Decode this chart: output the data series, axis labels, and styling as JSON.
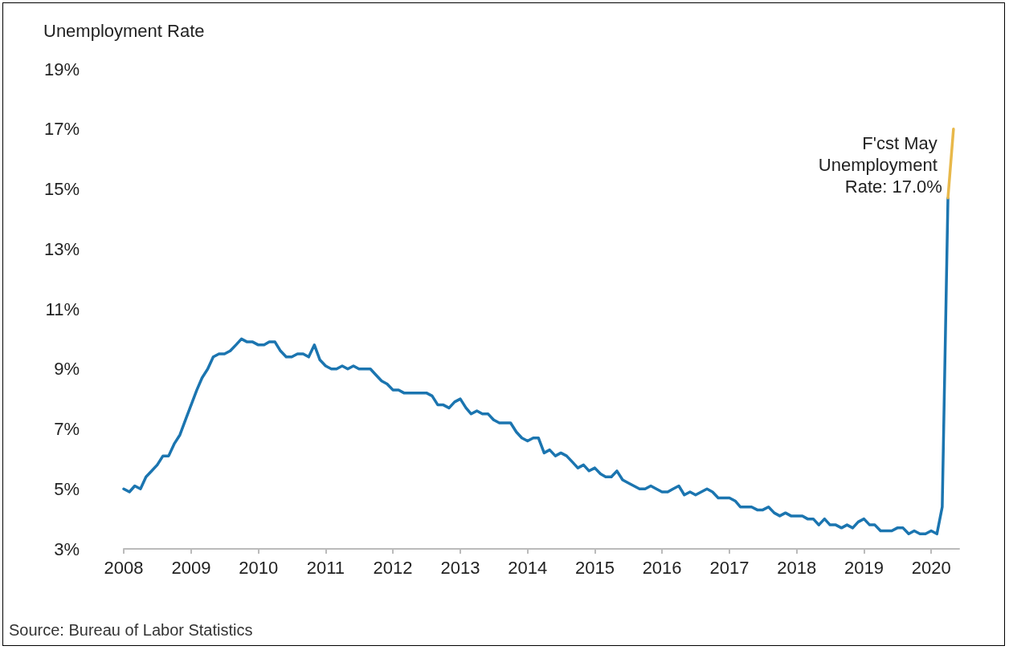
{
  "chart_data": {
    "type": "line",
    "ylabel": "Unemployment Rate",
    "annotations": [
      {
        "text": "F'cst May Unemployment Rate: 17.0%",
        "x": "2020-05",
        "y": 17.0
      },
      "Source: Bureau of Labor Statistics"
    ],
    "series": [
      {
        "color": "#1b75b0",
        "x": [
          "2008-01",
          "2008-02",
          "2008-03",
          "2008-04",
          "2008-05",
          "2008-06",
          "2008-07",
          "2008-08",
          "2008-09",
          "2008-10",
          "2008-11",
          "2008-12",
          "2009-01",
          "2009-02",
          "2009-03",
          "2009-04",
          "2009-05",
          "2009-06",
          "2009-07",
          "2009-08",
          "2009-09",
          "2009-10",
          "2009-11",
          "2009-12",
          "2010-01",
          "2010-02",
          "2010-03",
          "2010-04",
          "2010-05",
          "2010-06",
          "2010-07",
          "2010-08",
          "2010-09",
          "2010-10",
          "2010-11",
          "2010-12",
          "2011-01",
          "2011-02",
          "2011-03",
          "2011-04",
          "2011-05",
          "2011-06",
          "2011-07",
          "2011-08",
          "2011-09",
          "2011-10",
          "2011-11",
          "2011-12",
          "2012-01",
          "2012-02",
          "2012-03",
          "2012-04",
          "2012-05",
          "2012-06",
          "2012-07",
          "2012-08",
          "2012-09",
          "2012-10",
          "2012-11",
          "2012-12",
          "2013-01",
          "2013-02",
          "2013-03",
          "2013-04",
          "2013-05",
          "2013-06",
          "2013-07",
          "2013-08",
          "2013-09",
          "2013-10",
          "2013-11",
          "2013-12",
          "2014-01",
          "2014-02",
          "2014-03",
          "2014-04",
          "2014-05",
          "2014-06",
          "2014-07",
          "2014-08",
          "2014-09",
          "2014-10",
          "2014-11",
          "2014-12",
          "2015-01",
          "2015-02",
          "2015-03",
          "2015-04",
          "2015-05",
          "2015-06",
          "2015-07",
          "2015-08",
          "2015-09",
          "2015-10",
          "2015-11",
          "2015-12",
          "2016-01",
          "2016-02",
          "2016-03",
          "2016-04",
          "2016-05",
          "2016-06",
          "2016-07",
          "2016-08",
          "2016-09",
          "2016-10",
          "2016-11",
          "2016-12",
          "2017-01",
          "2017-02",
          "2017-03",
          "2017-04",
          "2017-05",
          "2017-06",
          "2017-07",
          "2017-08",
          "2017-09",
          "2017-10",
          "2017-11",
          "2017-12",
          "2018-01",
          "2018-02",
          "2018-03",
          "2018-04",
          "2018-05",
          "2018-06",
          "2018-07",
          "2018-08",
          "2018-09",
          "2018-10",
          "2018-11",
          "2018-12",
          "2019-01",
          "2019-02",
          "2019-03",
          "2019-04",
          "2019-05",
          "2019-06",
          "2019-07",
          "2019-08",
          "2019-09",
          "2019-10",
          "2019-11",
          "2019-12",
          "2020-01",
          "2020-02",
          "2020-03",
          "2020-04"
        ],
        "values": [
          5.0,
          4.9,
          5.1,
          5.0,
          5.4,
          5.6,
          5.8,
          6.1,
          6.1,
          6.5,
          6.8,
          7.3,
          7.8,
          8.3,
          8.7,
          9.0,
          9.4,
          9.5,
          9.5,
          9.6,
          9.8,
          10.0,
          9.9,
          9.9,
          9.8,
          9.8,
          9.9,
          9.9,
          9.6,
          9.4,
          9.4,
          9.5,
          9.5,
          9.4,
          9.8,
          9.3,
          9.1,
          9.0,
          9.0,
          9.1,
          9.0,
          9.1,
          9.0,
          9.0,
          9.0,
          8.8,
          8.6,
          8.5,
          8.3,
          8.3,
          8.2,
          8.2,
          8.2,
          8.2,
          8.2,
          8.1,
          7.8,
          7.8,
          7.7,
          7.9,
          8.0,
          7.7,
          7.5,
          7.6,
          7.5,
          7.5,
          7.3,
          7.2,
          7.2,
          7.2,
          6.9,
          6.7,
          6.6,
          6.7,
          6.7,
          6.2,
          6.3,
          6.1,
          6.2,
          6.1,
          5.9,
          5.7,
          5.8,
          5.6,
          5.7,
          5.5,
          5.4,
          5.4,
          5.6,
          5.3,
          5.2,
          5.1,
          5.0,
          5.0,
          5.1,
          5.0,
          4.9,
          4.9,
          5.0,
          5.1,
          4.8,
          4.9,
          4.8,
          4.9,
          5.0,
          4.9,
          4.7,
          4.7,
          4.7,
          4.6,
          4.4,
          4.4,
          4.4,
          4.3,
          4.3,
          4.4,
          4.2,
          4.1,
          4.2,
          4.1,
          4.1,
          4.1,
          4.0,
          4.0,
          3.8,
          4.0,
          3.8,
          3.8,
          3.7,
          3.8,
          3.7,
          3.9,
          4.0,
          3.8,
          3.8,
          3.6,
          3.6,
          3.6,
          3.7,
          3.7,
          3.5,
          3.6,
          3.5,
          3.5,
          3.6,
          3.5,
          4.4,
          14.7
        ]
      },
      {
        "color": "#e8b84a",
        "x": [
          "2020-04",
          "2020-05"
        ],
        "values": [
          14.7,
          17.0
        ]
      }
    ],
    "xlim": [
      "2008-01",
      "2020-06"
    ],
    "xticks": [
      "2008",
      "2009",
      "2010",
      "2011",
      "2012",
      "2013",
      "2014",
      "2015",
      "2016",
      "2017",
      "2018",
      "2019",
      "2020"
    ],
    "ylim": [
      3,
      19
    ],
    "yticks": [
      {
        "value": 3,
        "label": "3%"
      },
      {
        "value": 5,
        "label": "5%"
      },
      {
        "value": 7,
        "label": "7%"
      },
      {
        "value": 9,
        "label": "9%"
      },
      {
        "value": 11,
        "label": "11%"
      },
      {
        "value": 13,
        "label": "13%"
      },
      {
        "value": 15,
        "label": "15%"
      },
      {
        "value": 17,
        "label": "17%"
      },
      {
        "value": 19,
        "label": "19%"
      }
    ],
    "grid": false,
    "marker": "none",
    "line_style": "solid"
  }
}
